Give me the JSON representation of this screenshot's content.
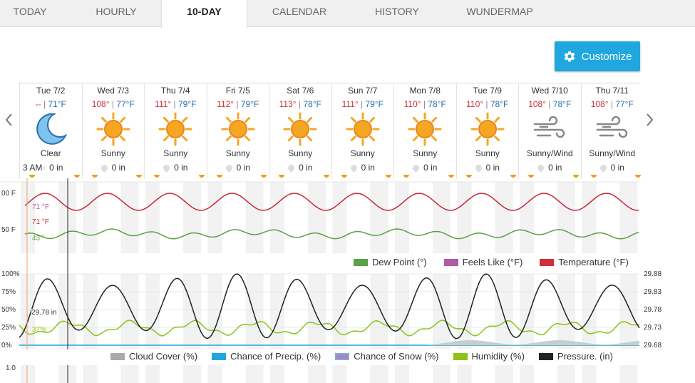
{
  "tabs": [
    {
      "label": "TODAY",
      "active": false
    },
    {
      "label": "HOURLY",
      "active": false
    },
    {
      "label": "10-DAY",
      "active": true
    },
    {
      "label": "CALENDAR",
      "active": false
    },
    {
      "label": "HISTORY",
      "active": false
    },
    {
      "label": "WUNDERMAP",
      "active": false
    }
  ],
  "customize_label": "Customize",
  "nav": {
    "prev_icon": "chevron-left-icon",
    "next_icon": "chevron-right-icon"
  },
  "days": [
    {
      "date": "Tue 7/2",
      "hi": "--",
      "lo": "71°F",
      "icon": "moon-icon",
      "cond": "Clear",
      "precip": "0 in"
    },
    {
      "date": "Wed 7/3",
      "hi": "108°",
      "lo": "77°F",
      "icon": "sun-icon",
      "cond": "Sunny",
      "precip": "0 in"
    },
    {
      "date": "Thu 7/4",
      "hi": "111°",
      "lo": "79°F",
      "icon": "sun-icon",
      "cond": "Sunny",
      "precip": "0 in"
    },
    {
      "date": "Fri 7/5",
      "hi": "112°",
      "lo": "79°F",
      "icon": "sun-icon",
      "cond": "Sunny",
      "precip": "0 in"
    },
    {
      "date": "Sat 7/6",
      "hi": "113°",
      "lo": "78°F",
      "icon": "sun-icon",
      "cond": "Sunny",
      "precip": "0 in"
    },
    {
      "date": "Sun 7/7",
      "hi": "111°",
      "lo": "79°F",
      "icon": "sun-icon",
      "cond": "Sunny",
      "precip": "0 in"
    },
    {
      "date": "Mon 7/8",
      "hi": "110°",
      "lo": "78°F",
      "icon": "sun-icon",
      "cond": "Sunny",
      "precip": "0 in"
    },
    {
      "date": "Tue 7/9",
      "hi": "110°",
      "lo": "78°F",
      "icon": "sun-icon",
      "cond": "Sunny",
      "precip": "0 in"
    },
    {
      "date": "Wed 7/10",
      "hi": "108°",
      "lo": "78°F",
      "icon": "wind-icon",
      "cond": "Sunny/Wind",
      "precip": "0 in"
    },
    {
      "date": "Thu 7/11",
      "hi": "108°",
      "lo": "77°F",
      "icon": "wind-icon",
      "cond": "Sunny/Wind",
      "precip": "0 in"
    }
  ],
  "time_label": "3 AM",
  "temp_chart": {
    "axis": [
      "00 F",
      "50 F"
    ],
    "readouts": {
      "feels": "71 °F",
      "temp": "71 °F",
      "dew": "43 °"
    },
    "legend": [
      {
        "label": "Dew Point (°)",
        "color": "#5aa045"
      },
      {
        "label": "Feels Like (°F)",
        "color": "#b05aa8"
      },
      {
        "label": "Temperature (°F)",
        "color": "#d0303a"
      }
    ],
    "colors": {
      "temp": "#c8283a",
      "dew": "#5aa045",
      "feels": "#b05aa8"
    }
  },
  "precip_chart": {
    "left_axis": [
      "100%",
      "75%",
      "50%",
      "25%",
      "0%"
    ],
    "right_axis": [
      "29.88",
      "29.83",
      "29.78",
      "29.73",
      "29.68"
    ],
    "readouts": {
      "pressure": "29.78 in",
      "humidity": "37%"
    },
    "legend": [
      {
        "label": "Cloud Cover (%)",
        "color": "#aaaaaa"
      },
      {
        "label": "Chance of Precip. (%)",
        "color": "#1fa7df"
      },
      {
        "label": "Chance of Snow (%)",
        "color": "#b07fc6"
      },
      {
        "label": "Humidity (%)",
        "color": "#8cc21a"
      },
      {
        "label": "Pressure. (in)",
        "color": "#222222"
      }
    ]
  },
  "bottom_axis": "1.0"
}
